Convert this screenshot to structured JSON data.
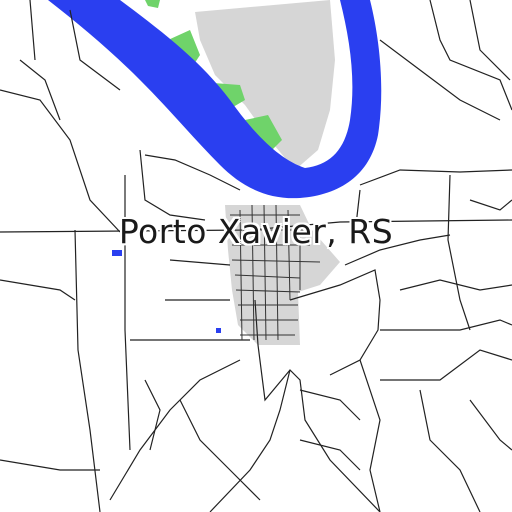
{
  "map": {
    "place_label": "Porto Xavier, RS",
    "colors": {
      "background": "#ffffff",
      "water": "#2a3ff0",
      "urban": "#d6d6d6",
      "vegetation": "#6fd36a",
      "roads": "#222222"
    }
  }
}
